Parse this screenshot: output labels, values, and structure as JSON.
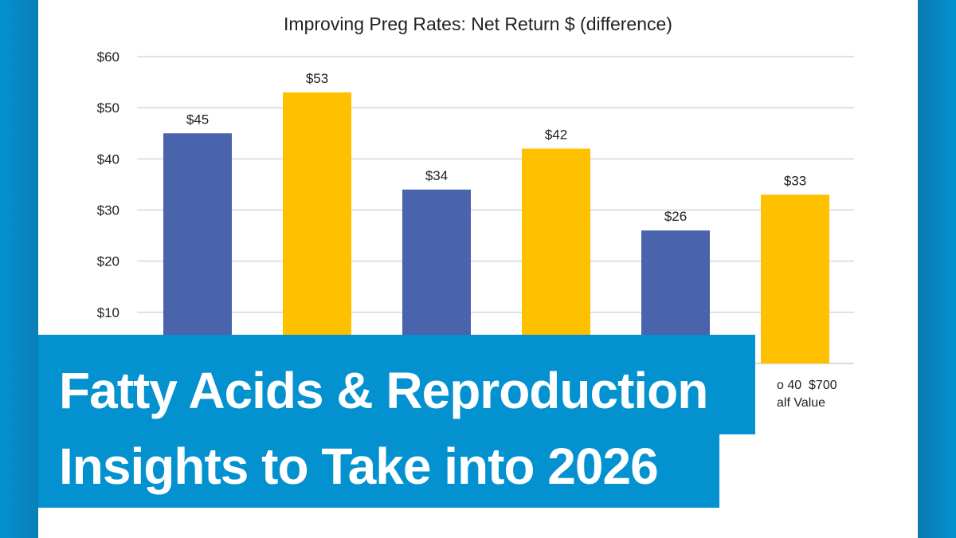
{
  "chart_data": {
    "type": "bar",
    "title": "Improving Preg Rates: Net Return $ (difference)",
    "categories": [
      "",
      "",
      "",
      "",
      "",
      ""
    ],
    "visible_category_fragment": [
      "o 40  $700",
      "alf Value"
    ],
    "values": [
      45,
      53,
      34,
      42,
      26,
      33
    ],
    "data_labels": [
      "$45",
      "$53",
      "$34",
      "$42",
      "$26",
      "$33"
    ],
    "bar_colors": [
      "#4a63ad",
      "#ffc000",
      "#4a63ad",
      "#ffc000",
      "#4a63ad",
      "#ffc000"
    ],
    "yticks": [
      "$10",
      "$20",
      "$30",
      "$40",
      "$50",
      "$60"
    ],
    "ylim": [
      0,
      60
    ],
    "grid": true
  },
  "banner": {
    "line1": "Fatty Acids & Reproduction",
    "line2": "Insights to Take into 2026",
    "color": "#0391d0"
  }
}
